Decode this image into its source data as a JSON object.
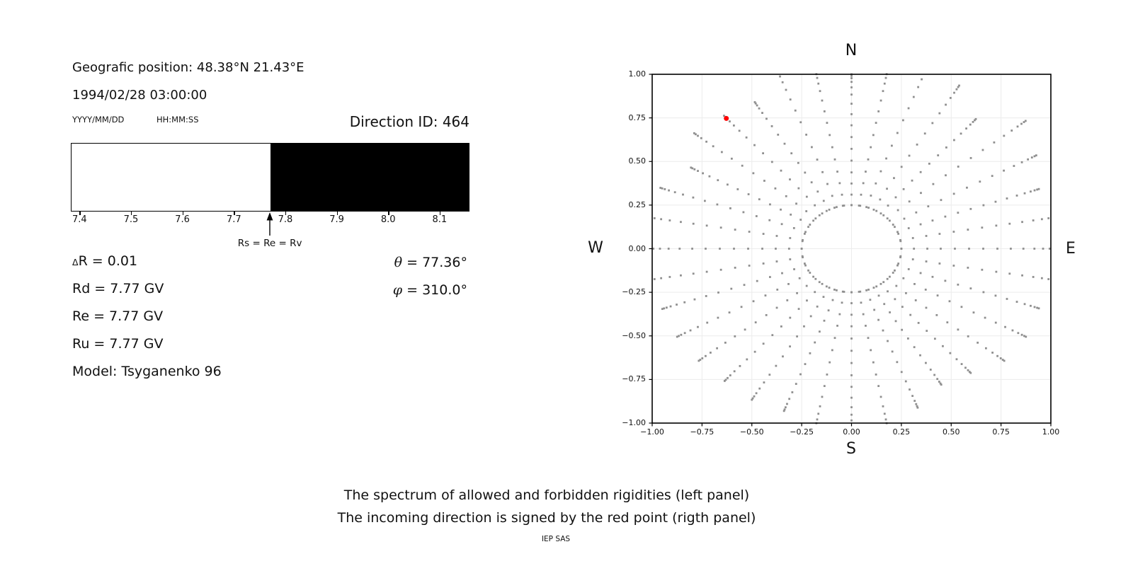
{
  "left_panel": {
    "geo_position": "Geografic position: 48.38°N 21.43°E",
    "datetime": "1994/02/28 03:00:00",
    "date_format_label": "YYYY/MM/DD",
    "time_format_label": "HH:MM:SS",
    "direction_id_label": "Direction ID: 464",
    "arrow_label": "Rs = Re = Rv",
    "delta_symbol": "Δ",
    "delta_rest": "R = 0.01",
    "rd": "Rd = 7.77 GV",
    "re": "Re = 7.77 GV",
    "ru": "Ru = 7.77 GV",
    "model": "Model: Tsyganenko 96",
    "theta_symbol": "θ",
    "theta_rest": " = 77.36°",
    "phi_symbol": "φ",
    "phi_rest": " = 310.0°"
  },
  "right_panel": {
    "compass": {
      "top": "N",
      "bottom": "S",
      "left": "W",
      "right": "E"
    }
  },
  "caption": {
    "line1": "The spectrum of allowed and forbidden rigidities (left panel)",
    "line2": "The incoming direction is signed by the red point (rigth panel)",
    "credit": "IEP SAS"
  },
  "chart_data": [
    {
      "type": "area",
      "title": "rigidity spectrum",
      "x_range": [
        7.383,
        8.158
      ],
      "xticks": [
        7.4,
        7.5,
        7.6,
        7.7,
        7.8,
        7.9,
        8.0,
        8.1
      ],
      "xtick_labels": [
        "7.4",
        "7.5",
        "7.6",
        "7.7",
        "7.8",
        "7.9",
        "8.0",
        "8.1"
      ],
      "regions": [
        {
          "name": "allowed",
          "from": 7.383,
          "to": 7.77,
          "color": "#ffffff"
        },
        {
          "name": "forbidden",
          "from": 7.77,
          "to": 8.158,
          "color": "#000000"
        }
      ],
      "annotation": {
        "x": 7.77,
        "label": "Rs = Re = Rv"
      }
    },
    {
      "type": "scatter",
      "title": "asymptotic directions",
      "xlim": [
        -1,
        1
      ],
      "ylim": [
        -1,
        1
      ],
      "grid": true,
      "xticks": [
        -1.0,
        -0.75,
        -0.5,
        -0.25,
        0.0,
        0.25,
        0.5,
        0.75,
        1.0
      ],
      "xtick_labels": [
        "−1.00",
        "−0.75",
        "−0.50",
        "−0.25",
        "0.00",
        "0.25",
        "0.50",
        "0.75",
        "1.00"
      ],
      "yticks": [
        1.0,
        0.75,
        0.5,
        0.25,
        0.0,
        -0.25,
        -0.5,
        -0.75,
        -1.0
      ],
      "ytick_labels": [
        "1.00",
        "0.75",
        "0.50",
        "0.25",
        "0.00",
        "−0.25",
        "−0.50",
        "−0.75",
        "−1.00"
      ],
      "marker_color": "#8f8f8f",
      "grid_color": "#ececec",
      "inner_circle": {
        "radius": 0.25,
        "n_points": 36
      },
      "spokes": {
        "angle_start_deg": 0,
        "angle_step_deg": 10,
        "r_start": 0.25,
        "curvature_deg": 4,
        "u_profile": [
          0,
          0.08,
          0.165,
          0.25,
          0.34,
          0.43,
          0.52,
          0.61,
          0.695,
          0.775,
          0.845,
          0.9,
          0.942,
          0.97,
          0.988,
          1.0
        ],
        "tip_radii": [
          1.04,
          1.05,
          1.0,
          1.07,
          1.14,
          0.97,
          1.08,
          1.12,
          1.04,
          1.0,
          1.04,
          1.1,
          0.97,
          0.995,
          1.03,
          0.93,
          1.02,
          1.05,
          1.04,
          1.05,
          1.01,
          1.01,
          1.0,
          0.99,
          1.0,
          0.99,
          1.04,
          1.03,
          1.04,
          0.97,
          0.9,
          0.93,
          1.0,
          1.01,
          1.0,
          1.05
        ]
      },
      "red_point": {
        "x": -0.628,
        "y": 0.747,
        "color": "#ff0000"
      }
    }
  ]
}
